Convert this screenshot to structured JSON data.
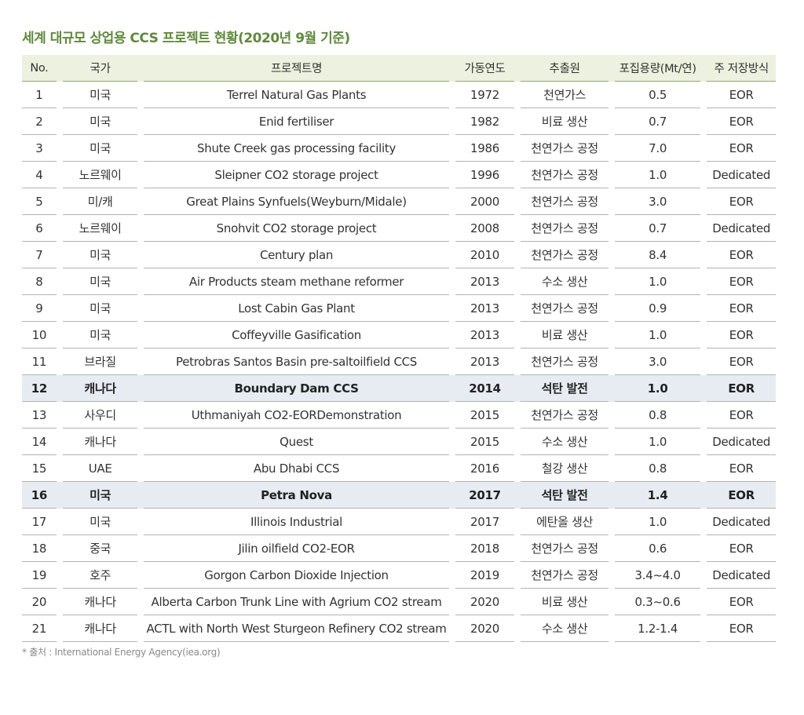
{
  "title": "세계 대규모 상업용 CCS 프로젝트 현황(2020년 9월 기준)",
  "table": {
    "headers": {
      "no": "No.",
      "country": "국가",
      "project": "프로젝트명",
      "year": "가동연도",
      "source": "추출원",
      "capacity": "포집용량(Mt/연)",
      "storage": "주 저장방식"
    },
    "rows": [
      {
        "no": "1",
        "country": "미국",
        "project": "Terrel Natural Gas Plants",
        "year": "1972",
        "source": "천연가스",
        "capacity": "0.5",
        "storage": "EOR",
        "highlight": false
      },
      {
        "no": "2",
        "country": "미국",
        "project": "Enid fertiliser",
        "year": "1982",
        "source": "비료 생산",
        "capacity": "0.7",
        "storage": "EOR",
        "highlight": false
      },
      {
        "no": "3",
        "country": "미국",
        "project": "Shute Creek gas processing facility",
        "year": "1986",
        "source": "천연가스 공정",
        "capacity": "7.0",
        "storage": "EOR",
        "highlight": false
      },
      {
        "no": "4",
        "country": "노르웨이",
        "project": "Sleipner CO2 storage project",
        "year": "1996",
        "source": "천연가스 공정",
        "capacity": "1.0",
        "storage": "Dedicated",
        "highlight": false
      },
      {
        "no": "5",
        "country": "미/캐",
        "project": "Great Plains Synfuels(Weyburn/Midale)",
        "year": "2000",
        "source": "천연가스 공정",
        "capacity": "3.0",
        "storage": "EOR",
        "highlight": false
      },
      {
        "no": "6",
        "country": "노르웨이",
        "project": "Snohvit CO2 storage project",
        "year": "2008",
        "source": "천연가스 공정",
        "capacity": "0.7",
        "storage": "Dedicated",
        "highlight": false
      },
      {
        "no": "7",
        "country": "미국",
        "project": "Century plan",
        "year": "2010",
        "source": "천연가스 공정",
        "capacity": "8.4",
        "storage": "EOR",
        "highlight": false
      },
      {
        "no": "8",
        "country": "미국",
        "project": "Air Products steam methane reformer",
        "year": "2013",
        "source": "수소 생산",
        "capacity": "1.0",
        "storage": "EOR",
        "highlight": false
      },
      {
        "no": "9",
        "country": "미국",
        "project": "Lost Cabin Gas Plant",
        "year": "2013",
        "source": "천연가스 공정",
        "capacity": "0.9",
        "storage": "EOR",
        "highlight": false
      },
      {
        "no": "10",
        "country": "미국",
        "project": "Coffeyville Gasification",
        "year": "2013",
        "source": "비료 생산",
        "capacity": "1.0",
        "storage": "EOR",
        "highlight": false
      },
      {
        "no": "11",
        "country": "브라질",
        "project": "Petrobras Santos Basin pre-saltoilfield CCS",
        "year": "2013",
        "source": "천연가스 공정",
        "capacity": "3.0",
        "storage": "EOR",
        "highlight": false
      },
      {
        "no": "12",
        "country": "캐나다",
        "project": "Boundary Dam CCS",
        "year": "2014",
        "source": "석탄 발전",
        "capacity": "1.0",
        "storage": "EOR",
        "highlight": true
      },
      {
        "no": "13",
        "country": "사우디",
        "project": "Uthmaniyah CO2-EORDemonstration",
        "year": "2015",
        "source": "천연가스 공정",
        "capacity": "0.8",
        "storage": "EOR",
        "highlight": false
      },
      {
        "no": "14",
        "country": "캐나다",
        "project": "Quest",
        "year": "2015",
        "source": "수소 생산",
        "capacity": "1.0",
        "storage": "Dedicated",
        "highlight": false
      },
      {
        "no": "15",
        "country": "UAE",
        "project": "Abu Dhabi CCS",
        "year": "2016",
        "source": "철강 생산",
        "capacity": "0.8",
        "storage": "EOR",
        "highlight": false
      },
      {
        "no": "16",
        "country": "미국",
        "project": "Petra Nova",
        "year": "2017",
        "source": "석탄 발전",
        "capacity": "1.4",
        "storage": "EOR",
        "highlight": true
      },
      {
        "no": "17",
        "country": "미국",
        "project": "Illinois Industrial",
        "year": "2017",
        "source": "에탄올 생산",
        "capacity": "1.0",
        "storage": "Dedicated",
        "highlight": false
      },
      {
        "no": "18",
        "country": "중국",
        "project": "Jilin oilfield CO2-EOR",
        "year": "2018",
        "source": "천연가스 공정",
        "capacity": "0.6",
        "storage": "EOR",
        "highlight": false
      },
      {
        "no": "19",
        "country": "호주",
        "project": "Gorgon Carbon Dioxide Injection",
        "year": "2019",
        "source": "천연가스 공정",
        "capacity": "3.4~4.0",
        "storage": "Dedicated",
        "highlight": false
      },
      {
        "no": "20",
        "country": "캐나다",
        "project": "Alberta Carbon Trunk Line with Agrium CO2 stream",
        "year": "2020",
        "source": "비료 생산",
        "capacity": "0.3~0.6",
        "storage": "EOR",
        "highlight": false
      },
      {
        "no": "21",
        "country": "캐나다",
        "project": "ACTL with North West Sturgeon Refinery CO2 stream",
        "year": "2020",
        "source": "수소 생산",
        "capacity": "1.2-1.4",
        "storage": "EOR",
        "highlight": false
      }
    ]
  },
  "source_note": "* 출처 : International Energy Agency(iea.org)",
  "colors": {
    "title": "#5f8a3a",
    "header_bg": "#ecf2df",
    "highlight_bg": "#e6ecf1"
  }
}
